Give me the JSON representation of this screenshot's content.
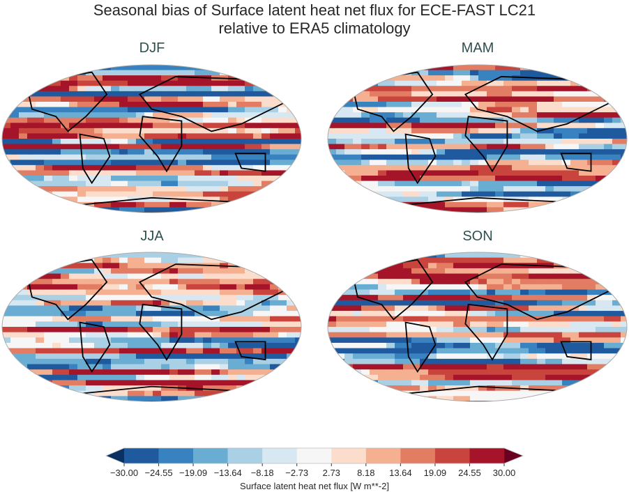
{
  "title_line1": "Seasonal bias of Surface latent heat net flux for ECE-FAST LC21",
  "title_line2": "relative to ERA5 climatology",
  "panels": [
    {
      "label": "DJF"
    },
    {
      "label": "MAM"
    },
    {
      "label": "JJA"
    },
    {
      "label": "SON"
    }
  ],
  "colorbar": {
    "label": "Surface latent heat net flux [W m**-2]",
    "ticks": [
      "−30.00",
      "−24.55",
      "−19.09",
      "−13.64",
      "−8.18",
      "−2.73",
      "2.73",
      "8.18",
      "13.64",
      "19.09",
      "24.55",
      "30.00"
    ],
    "colors": [
      "#1f5a9e",
      "#3883bf",
      "#6aadd3",
      "#a9d0e5",
      "#d8e8f2",
      "#f6f6f6",
      "#fcdccb",
      "#f5b092",
      "#e27c63",
      "#c9443d",
      "#a51428"
    ],
    "under_color": "#0b3062",
    "over_color": "#6a0020",
    "range": [
      -30,
      30
    ],
    "extend": "both"
  }
}
